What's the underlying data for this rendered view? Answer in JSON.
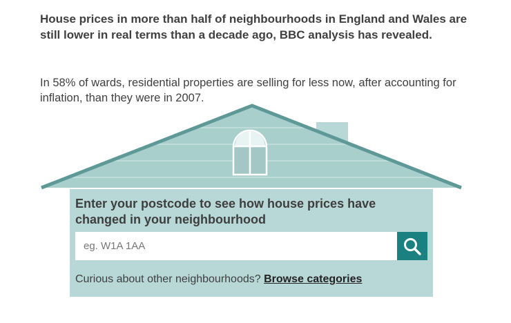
{
  "article": {
    "intro": "House prices in more than half of neighbourhoods in England and Wales are still lower in real terms than a decade ago, BBC analysis has revealed.",
    "lede": "In 58% of wards, residential properties are selling for less now, after accounting for inflation, than they were in 2007."
  },
  "search_panel": {
    "title": "Enter your postcode to see how house prices have changed in your neighbourhood",
    "placeholder": "eg. W1A 1AA",
    "search_button_icon": "search-icon",
    "browse_prompt": "Curious about other neighbourhoods?",
    "browse_link": "Browse categories"
  },
  "colors": {
    "house_light": "#b8d8d7",
    "roof": "#a9cfcd",
    "roof_edge": "#5e9998",
    "button": "#1a8080"
  }
}
